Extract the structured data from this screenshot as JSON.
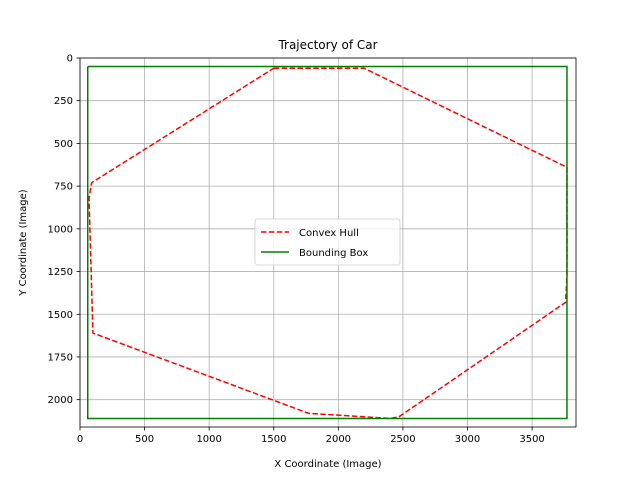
{
  "chart_data": {
    "type": "line",
    "title": "Trajectory of Car",
    "xlabel": "X Coordinate (Image)",
    "ylabel": "Y Coordinate (Image)",
    "xlim": [
      0,
      3840
    ],
    "ylim": [
      2160,
      0
    ],
    "y_inverted": true,
    "grid": true,
    "legend_position": "center-right",
    "xticks": [
      0,
      500,
      1000,
      1500,
      2000,
      2500,
      3000,
      3500
    ],
    "yticks": [
      0,
      250,
      500,
      750,
      1000,
      1250,
      1500,
      1750,
      2000
    ],
    "series": [
      {
        "name": "Convex Hull",
        "color": "#ff0000",
        "style": "dashed",
        "points": [
          [
            1500,
            60
          ],
          [
            2200,
            60
          ],
          [
            3770,
            640
          ],
          [
            3770,
            1270
          ],
          [
            3760,
            1430
          ],
          [
            2470,
            2100
          ],
          [
            2400,
            2110
          ],
          [
            1770,
            2080
          ],
          [
            100,
            1610
          ],
          [
            70,
            820
          ],
          [
            90,
            730
          ],
          [
            1500,
            60
          ]
        ]
      },
      {
        "name": "Bounding Box",
        "color": "#008000",
        "style": "solid",
        "points": [
          [
            60,
            50
          ],
          [
            3770,
            50
          ],
          [
            3770,
            2110
          ],
          [
            60,
            2110
          ],
          [
            60,
            50
          ]
        ]
      }
    ]
  }
}
